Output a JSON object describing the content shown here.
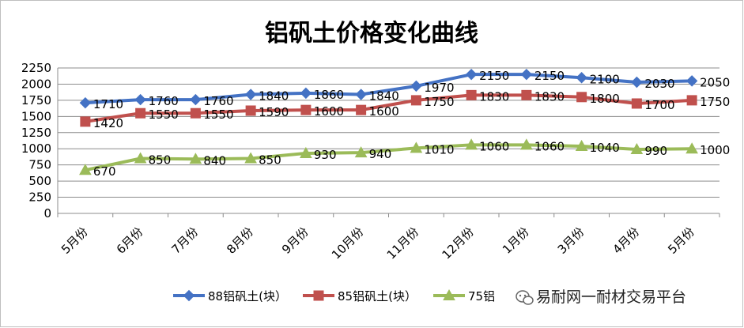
{
  "chart_data": {
    "type": "line",
    "title": "铝矾土价格变化曲线",
    "categories": [
      "5月份",
      "6月份",
      "7月份",
      "8月份",
      "9月份",
      "10月份",
      "11月份",
      "12月份",
      "1月份",
      "3月份",
      "4月份",
      "5月份"
    ],
    "series": [
      {
        "name": "88铝矾土(块）",
        "color": "#4472c4",
        "marker": "diamond",
        "values": [
          1710,
          1760,
          1760,
          1840,
          1860,
          1840,
          1970,
          2150,
          2150,
          2100,
          2030,
          2050
        ]
      },
      {
        "name": "85铝矾土(块）",
        "color": "#c0504d",
        "marker": "square",
        "values": [
          1420,
          1550,
          1550,
          1590,
          1600,
          1600,
          1750,
          1830,
          1830,
          1800,
          1700,
          1750
        ]
      },
      {
        "name": "75铝矾土(块）",
        "color": "#9bbb59",
        "marker": "triangle",
        "values": [
          670,
          850,
          840,
          850,
          930,
          940,
          1010,
          1060,
          1060,
          1040,
          990,
          1000
        ]
      }
    ],
    "yticks": [
      0,
      250,
      500,
      750,
      1000,
      1250,
      1500,
      1750,
      2000,
      2250
    ],
    "ylim": [
      0,
      2250
    ],
    "grid": true,
    "legend_position": "bottom"
  },
  "watermark": {
    "legend_visible_text": "75铝",
    "text": "易耐网一耐材交易平台",
    "icon": "wechat-icon"
  }
}
